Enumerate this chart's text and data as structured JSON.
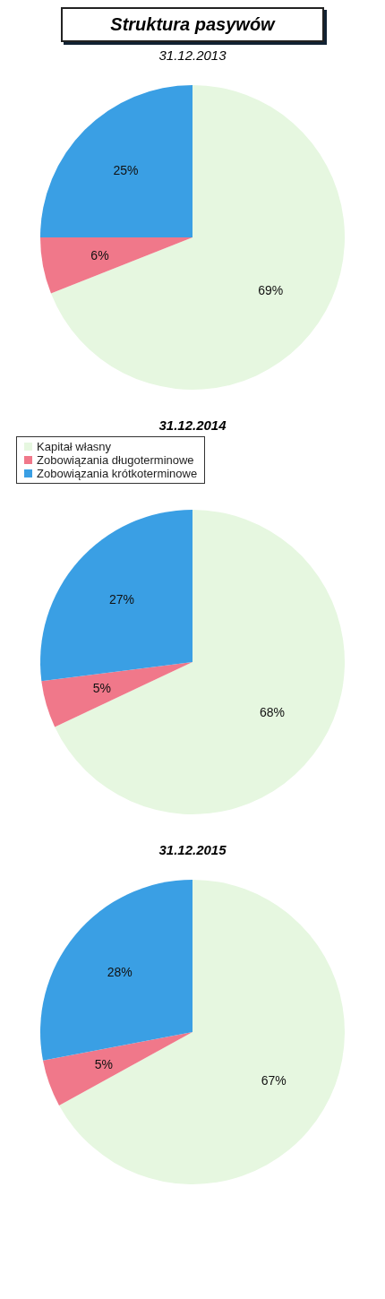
{
  "chart_data": [
    {
      "type": "pie",
      "title": "Struktura pasywów",
      "subtitle": "31.12.2013",
      "categories": [
        null,
        null,
        null
      ],
      "values": [
        69,
        6,
        25
      ],
      "value_labels": [
        "69%",
        "6%",
        "25%"
      ],
      "colors": [
        "#e6f7e0",
        "#f0788a",
        "#3a9fe4"
      ]
    },
    {
      "type": "pie",
      "title": "31.12.2014",
      "categories": [
        "Kapitał własny",
        "Zobowiązania długoterminowe",
        "Zobowiązania krótkoterminowe"
      ],
      "values": [
        68,
        5,
        27
      ],
      "value_labels": [
        "68%",
        "5%",
        "27%"
      ],
      "colors": [
        "#e6f7e0",
        "#f0788a",
        "#3a9fe4"
      ],
      "legend": "top left"
    },
    {
      "type": "pie",
      "title": "31.12.2015",
      "categories": [
        null,
        null,
        null
      ],
      "values": [
        67,
        5,
        28
      ],
      "value_labels": [
        "67%",
        "5%",
        "28%"
      ],
      "colors": [
        "#e6f7e0",
        "#f0788a",
        "#3a9fe4"
      ]
    }
  ]
}
